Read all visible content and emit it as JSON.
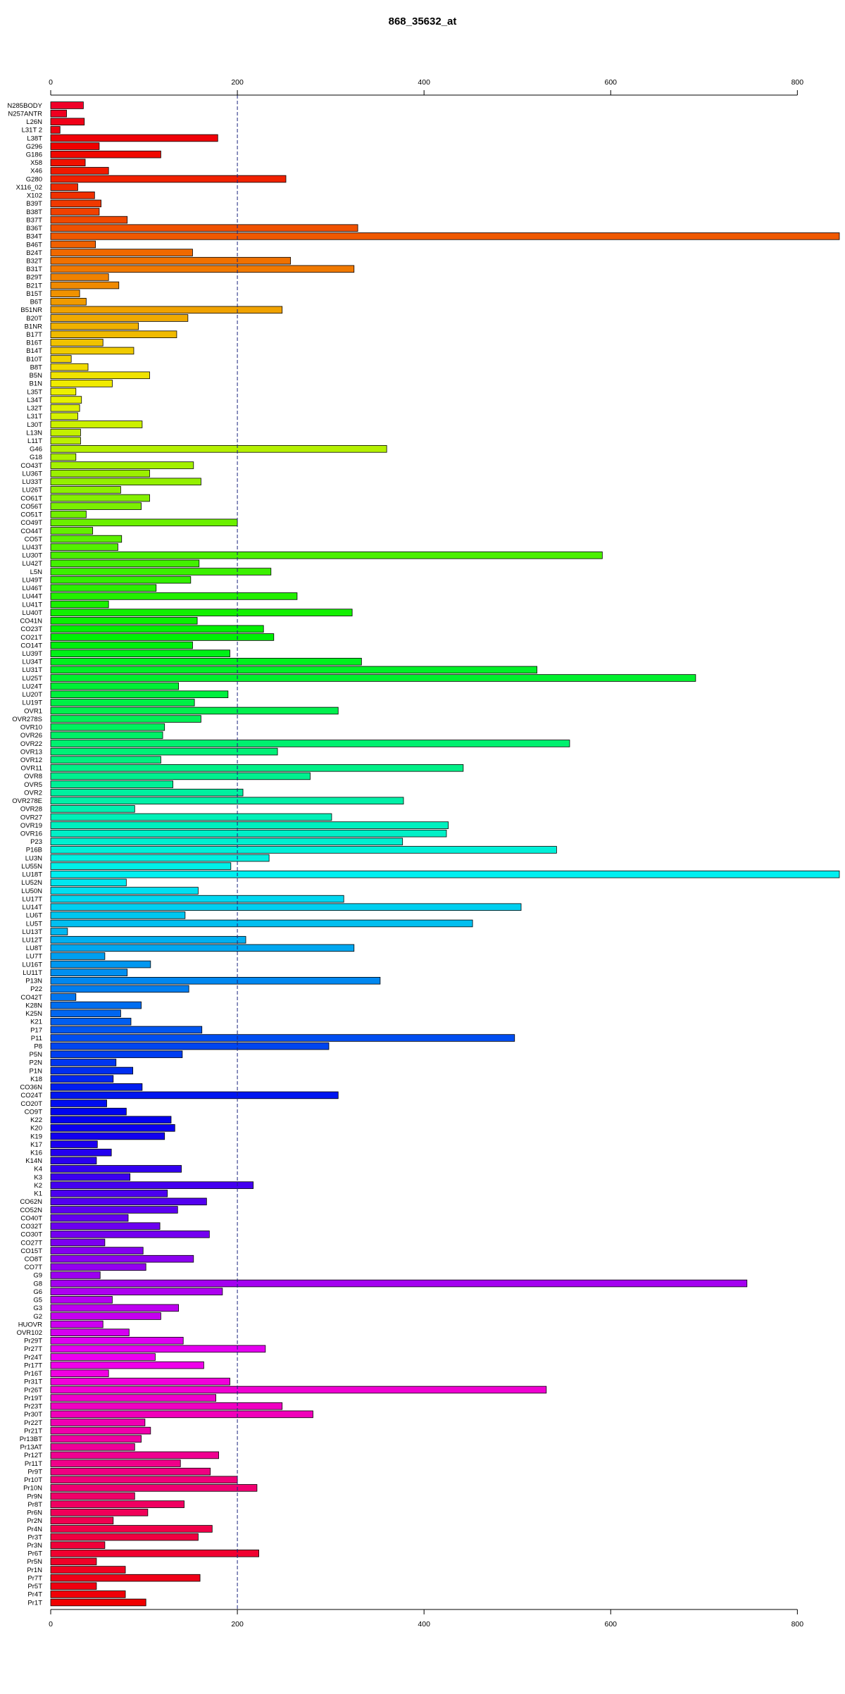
{
  "chart_data": {
    "type": "bar",
    "orientation": "horizontal",
    "title": "868_35632_at",
    "xlabel": "",
    "ylabel": "",
    "xlim": [
      0,
      845
    ],
    "xticks": [
      0,
      200,
      400,
      600,
      800
    ],
    "reference_line": 200,
    "grid": false,
    "legend": "none",
    "bar_colors": "rainbow gradient red → magenta → blue → cyan → green → yellow → orange → red",
    "categories": [
      "N285BODY",
      "N257ANTR",
      "L26N",
      "L31T 2",
      "L38T",
      "G296",
      "G186",
      "X58",
      "X46",
      "G280",
      "X116_02",
      "X102",
      "B39T",
      "B38T",
      "B37T",
      "B36T",
      "B34T",
      "B46T",
      "B24T",
      "B32T",
      "B31T",
      "B29T",
      "B21T",
      "B15T",
      "B6T",
      "B51NR",
      "B20T",
      "B1NR",
      "B17T",
      "B16T",
      "B14T",
      "B10T",
      "B8T",
      "B5N",
      "B1N",
      "L35T",
      "L34T",
      "L32T",
      "L31T",
      "L30T",
      "L13N",
      "L11T",
      "G46",
      "G18",
      "CO43T",
      "LU36T",
      "LU33T",
      "LU26T",
      "CO61T",
      "CO56T",
      "CO51T",
      "CO49T",
      "CO44T",
      "CO5T",
      "LU43T",
      "LU30T",
      "LU42T",
      "L5N",
      "LU49T",
      "LU46T",
      "LU44T",
      "LU41T",
      "LU40T",
      "CO41N",
      "CO23T",
      "CO21T",
      "CO14T",
      "LU39T",
      "LU34T",
      "LU31T",
      "LU25T",
      "LU24T",
      "LU20T",
      "LU19T",
      "OVR1",
      "OVR278S",
      "OVR10",
      "OVR26",
      "OVR22",
      "OVR13",
      "OVR12",
      "OVR11",
      "OVR8",
      "OVR5",
      "OVR2",
      "OVR278E",
      "OVR28",
      "OVR27",
      "OVR19",
      "OVR16",
      "P23",
      "P16B",
      "LU3N",
      "LU55N",
      "LU18T",
      "LU52N",
      "LU50N",
      "LU17T",
      "LU14T",
      "LU6T",
      "LU5T",
      "LU13T",
      "LU12T",
      "LU8T",
      "LU7T",
      "LU16T",
      "LU11T",
      "P13N",
      "P22",
      "CO42T",
      "K28N",
      "K25N",
      "K21",
      "P17",
      "P11",
      "P8",
      "P5N",
      "P2N",
      "P1N",
      "K18",
      "CO36N",
      "CO24T",
      "CO20T",
      "CO9T",
      "K22",
      "K20",
      "K19",
      "K17",
      "K16",
      "K14N",
      "K4",
      "K3",
      "K2",
      "K1",
      "CO62N",
      "CO52N",
      "CO40T",
      "CO32T",
      "CO30T",
      "CO27T",
      "CO15T",
      "CO8T",
      "CO7T",
      "G9",
      "G8",
      "G6",
      "G5",
      "G3",
      "G2",
      "HUOVR",
      "OVR102",
      "Pr29T",
      "Pr27T",
      "Pr24T",
      "Pr17T",
      "Pr16T",
      "Pr31T",
      "Pr26T",
      "Pr19T",
      "Pr23T",
      "Pr30T",
      "Pr22T",
      "Pr21T",
      "Pr13BT",
      "Pr13AT",
      "Pr12T",
      "Pr11T",
      "Pr9T",
      "Pr10T",
      "Pr10N",
      "Pr9N",
      "Pr8T",
      "Pr6N",
      "Pr2N",
      "Pr4N",
      "Pr3T",
      "Pr3N",
      "Pr6T",
      "Pr5N",
      "Pr1N",
      "Pr7T",
      "Pr5T",
      "Pr4T",
      "Pr1T"
    ],
    "values": [
      35,
      17,
      36,
      10,
      179,
      52,
      118,
      37,
      62,
      252,
      29,
      47,
      54,
      52,
      82,
      329,
      845,
      48,
      152,
      257,
      325,
      62,
      73,
      31,
      38,
      248,
      147,
      94,
      135,
      56,
      89,
      22,
      40,
      106,
      66,
      27,
      33,
      31,
      29,
      98,
      32,
      32,
      360,
      27,
      153,
      106,
      161,
      75,
      106,
      97,
      38,
      200,
      45,
      76,
      72,
      591,
      159,
      236,
      150,
      113,
      264,
      62,
      323,
      157,
      228,
      239,
      152,
      192,
      333,
      521,
      691,
      137,
      190,
      154,
      308,
      161,
      122,
      120,
      556,
      243,
      118,
      442,
      278,
      131,
      206,
      378,
      90,
      301,
      426,
      424,
      377,
      542,
      234,
      193,
      845,
      81,
      158,
      314,
      504,
      144,
      452,
      18,
      209,
      325,
      58,
      107,
      82,
      353,
      148,
      27,
      97,
      75,
      86,
      162,
      497,
      298,
      141,
      70,
      88,
      67,
      98,
      308,
      60,
      81,
      129,
      133,
      122,
      50,
      65,
      49,
      140,
      85,
      217,
      125,
      167,
      136,
      83,
      117,
      170,
      58,
      99,
      153,
      102,
      53,
      746,
      184,
      66,
      137,
      118,
      56,
      84,
      142,
      230,
      112,
      164,
      62,
      192,
      531,
      177,
      248,
      281,
      101,
      107,
      97,
      90,
      180,
      139,
      171,
      200,
      221,
      90,
      143,
      104,
      67,
      173,
      158,
      58,
      223,
      49,
      80,
      160,
      49,
      80,
      102
    ]
  }
}
